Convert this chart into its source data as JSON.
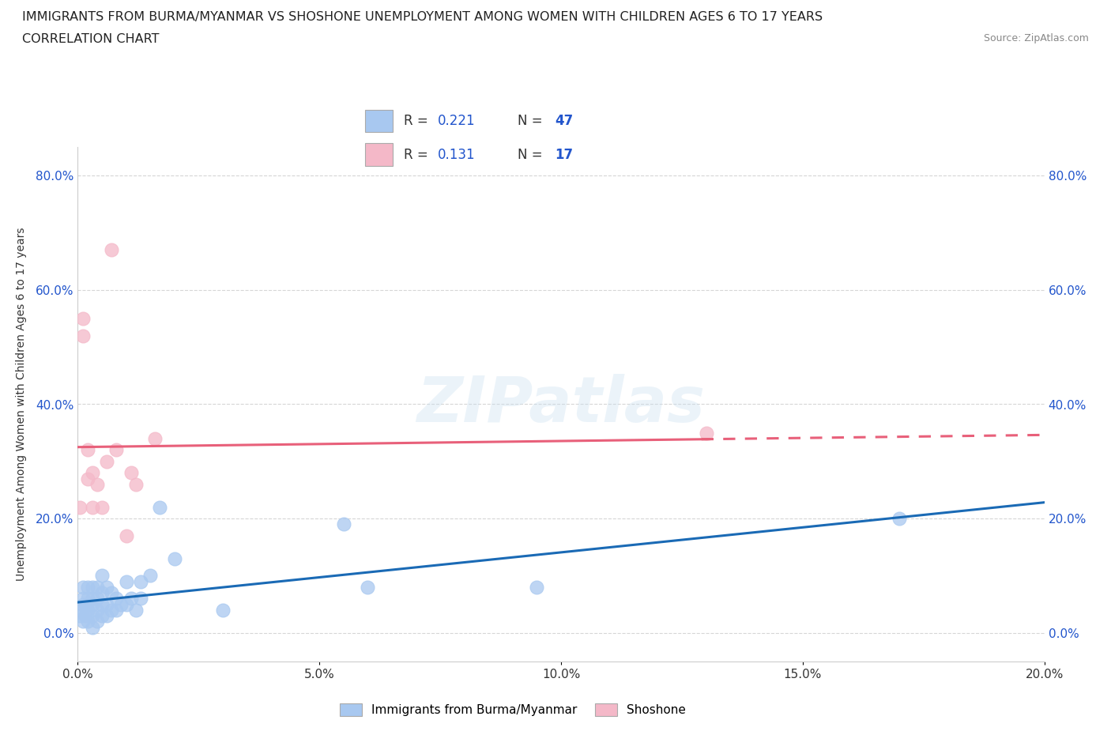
{
  "title_line1": "IMMIGRANTS FROM BURMA/MYANMAR VS SHOSHONE UNEMPLOYMENT AMONG WOMEN WITH CHILDREN AGES 6 TO 17 YEARS",
  "title_line2": "CORRELATION CHART",
  "source": "Source: ZipAtlas.com",
  "ylabel": "Unemployment Among Women with Children Ages 6 to 17 years",
  "xlim": [
    0.0,
    0.2
  ],
  "ylim": [
    -0.05,
    0.85
  ],
  "yticks": [
    0.0,
    0.2,
    0.4,
    0.6,
    0.8
  ],
  "ytick_labels": [
    "0.0%",
    "20.0%",
    "40.0%",
    "60.0%",
    "80.0%"
  ],
  "xticks": [
    0.0,
    0.05,
    0.1,
    0.15,
    0.2
  ],
  "xtick_labels": [
    "0.0%",
    "5.0%",
    "10.0%",
    "15.0%",
    "20.0%"
  ],
  "blue_color": "#a8c8f0",
  "pink_color": "#f4b8c8",
  "blue_line_color": "#1a6ab5",
  "pink_line_color": "#e8607a",
  "R_blue": 0.221,
  "N_blue": 47,
  "R_pink": 0.131,
  "N_pink": 17,
  "legend_labels": [
    "Immigrants from Burma/Myanmar",
    "Shoshone"
  ],
  "watermark_text": "ZIPatlas",
  "blue_scatter_x": [
    0.0005,
    0.0008,
    0.001,
    0.001,
    0.001,
    0.001,
    0.0015,
    0.0015,
    0.002,
    0.002,
    0.002,
    0.002,
    0.003,
    0.003,
    0.003,
    0.003,
    0.003,
    0.004,
    0.004,
    0.004,
    0.004,
    0.005,
    0.005,
    0.005,
    0.005,
    0.006,
    0.006,
    0.006,
    0.007,
    0.007,
    0.008,
    0.008,
    0.009,
    0.01,
    0.01,
    0.011,
    0.012,
    0.013,
    0.013,
    0.015,
    0.017,
    0.02,
    0.03,
    0.055,
    0.06,
    0.095,
    0.17
  ],
  "blue_scatter_y": [
    0.03,
    0.04,
    0.02,
    0.05,
    0.06,
    0.08,
    0.03,
    0.05,
    0.02,
    0.04,
    0.06,
    0.08,
    0.01,
    0.03,
    0.05,
    0.06,
    0.08,
    0.02,
    0.04,
    0.06,
    0.08,
    0.03,
    0.05,
    0.07,
    0.1,
    0.03,
    0.05,
    0.08,
    0.04,
    0.07,
    0.04,
    0.06,
    0.05,
    0.05,
    0.09,
    0.06,
    0.04,
    0.06,
    0.09,
    0.1,
    0.22,
    0.13,
    0.04,
    0.19,
    0.08,
    0.08,
    0.2
  ],
  "pink_scatter_x": [
    0.0005,
    0.001,
    0.001,
    0.002,
    0.002,
    0.003,
    0.003,
    0.004,
    0.005,
    0.006,
    0.007,
    0.008,
    0.01,
    0.011,
    0.012,
    0.016,
    0.13
  ],
  "pink_scatter_y": [
    0.22,
    0.52,
    0.55,
    0.27,
    0.32,
    0.22,
    0.28,
    0.26,
    0.22,
    0.3,
    0.67,
    0.32,
    0.17,
    0.28,
    0.26,
    0.34,
    0.35
  ],
  "background_color": "#ffffff",
  "grid_color": "#cccccc",
  "text_color_blue": "#2255cc",
  "text_color_black": "#333333"
}
